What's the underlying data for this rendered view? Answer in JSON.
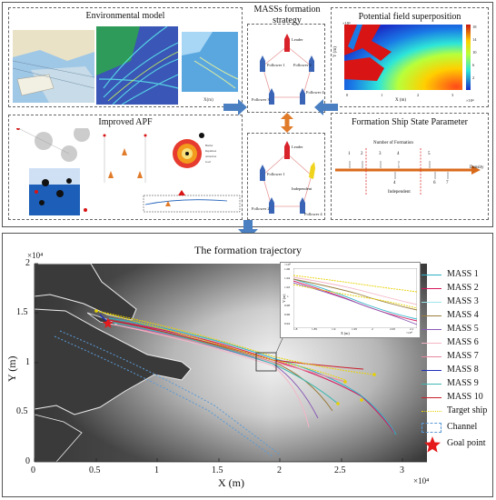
{
  "panels": {
    "env_model": {
      "title": "Environmental model"
    },
    "strategy": {
      "title_line1": "MASSs formation",
      "title_line2": "strategy"
    },
    "potential": {
      "title": "Potential field superposition",
      "xlabel": "X (m)",
      "ylabel": "Y (m)",
      "x_exp": "×10⁴",
      "y_exp": "×10⁴"
    },
    "apf": {
      "title": "Improved APF"
    },
    "state": {
      "title": "Formation Ship State Parameter"
    }
  },
  "formation_a": {
    "leader": "Leader",
    "f1": "Follower 1",
    "f2": "Follower 2",
    "f3": "Follower 3",
    "f4": "Follower 4"
  },
  "formation_b": {
    "leader": "Leader",
    "f1": "Follower 1",
    "f2": "Follower 2",
    "f4": "Follower 4",
    "independent": "Independent"
  },
  "state_diagram": {
    "top": "Number of Formation",
    "low": "Low",
    "medium": "Medium",
    "high": "High",
    "density": "Density",
    "independent": "Independent",
    "nums_top": [
      "1",
      "2",
      "3",
      "4",
      "5"
    ],
    "nums_bottom": [
      "4",
      "6",
      "7"
    ]
  },
  "trajectory": {
    "title": "The formation trajectory",
    "xlabel": "X (m)",
    "ylabel": "Y (m)",
    "x_exp": "×10⁴",
    "y_exp": "×10⁴",
    "xticks": [
      "0",
      "0.5",
      "1",
      "1.5",
      "2",
      "2.5",
      "3"
    ],
    "yticks": [
      "0",
      "0.5",
      "1",
      "1.5",
      "2"
    ]
  },
  "legend": {
    "items": [
      {
        "label": "MASS 1",
        "color": "#2bb1c7"
      },
      {
        "label": "MASS 2",
        "color": "#d4145a"
      },
      {
        "label": "MASS 3",
        "color": "#9fe3ee"
      },
      {
        "label": "MASS 4",
        "color": "#9a7b3c"
      },
      {
        "label": "MASS 5",
        "color": "#8a5ab5"
      },
      {
        "label": "MASS 6",
        "color": "#f3b5c6"
      },
      {
        "label": "MASS 7",
        "color": "#e7869f"
      },
      {
        "label": "MASS 8",
        "color": "#1f2fb5"
      },
      {
        "label": "MASS 9",
        "color": "#3fb8b0"
      },
      {
        "label": "MASS 10",
        "color": "#c81e2a"
      }
    ],
    "target_ship": "Target ship",
    "channel": "Channel",
    "goal_point": "Goal point"
  },
  "inset": {
    "xticks": [
      "1.8",
      "1.85",
      "1.9",
      "1.95",
      "2",
      "2.05",
      "2.1"
    ],
    "yticks": [
      "0.94",
      "0.96",
      "0.98",
      "1",
      "1.02",
      "1.04",
      "1.06"
    ],
    "xlabel": "X (m)",
    "ylabel": "Y (m)",
    "x_exp": "×10⁴",
    "y_exp": "×10⁴"
  },
  "colors": {
    "arrow": "#4a7fc1",
    "orange_arrow": "#e07b2a",
    "goal": "#e41a1c",
    "target": "#e6d100"
  }
}
